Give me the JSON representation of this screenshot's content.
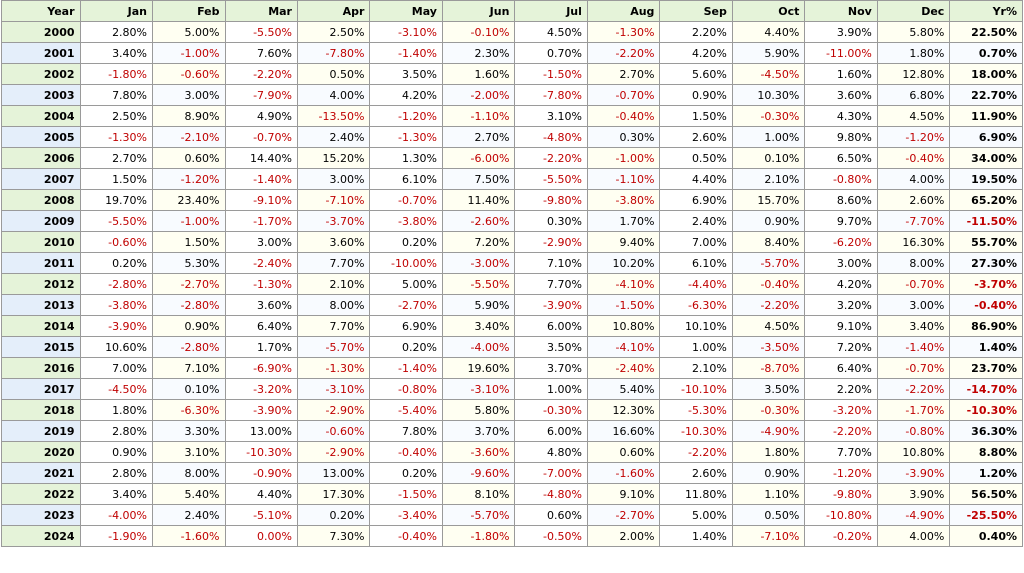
{
  "table": {
    "header": [
      "Year",
      "Jan",
      "Feb",
      "Mar",
      "Apr",
      "May",
      "Jun",
      "Jul",
      "Aug",
      "Sep",
      "Oct",
      "Nov",
      "Dec",
      "Yr%"
    ],
    "rows": [
      [
        "2000",
        "2.80%",
        "5.00%",
        "-5.50%",
        "2.50%",
        "-3.10%",
        "-0.10%",
        "4.50%",
        "-1.30%",
        "2.20%",
        "4.40%",
        "3.90%",
        "5.80%",
        "22.50%"
      ],
      [
        "2001",
        "3.40%",
        "-1.00%",
        "7.60%",
        "-7.80%",
        "-1.40%",
        "2.30%",
        "0.70%",
        "-2.20%",
        "4.20%",
        "5.90%",
        "-11.00%",
        "1.80%",
        "0.70%"
      ],
      [
        "2002",
        "-1.80%",
        "-0.60%",
        "-2.20%",
        "0.50%",
        "3.50%",
        "1.60%",
        "-1.50%",
        "2.70%",
        "5.60%",
        "-4.50%",
        "1.60%",
        "12.80%",
        "18.00%"
      ],
      [
        "2003",
        "7.80%",
        "3.00%",
        "-7.90%",
        "4.00%",
        "4.20%",
        "-2.00%",
        "-7.80%",
        "-0.70%",
        "0.90%",
        "10.30%",
        "3.60%",
        "6.80%",
        "22.70%"
      ],
      [
        "2004",
        "2.50%",
        "8.90%",
        "4.90%",
        "-13.50%",
        "-1.20%",
        "-1.10%",
        "3.10%",
        "-0.40%",
        "1.50%",
        "-0.30%",
        "4.30%",
        "4.50%",
        "11.90%"
      ],
      [
        "2005",
        "-1.30%",
        "-2.10%",
        "-0.70%",
        "2.40%",
        "-1.30%",
        "2.70%",
        "-4.80%",
        "0.30%",
        "2.60%",
        "1.00%",
        "9.80%",
        "-1.20%",
        "6.90%"
      ],
      [
        "2006",
        "2.70%",
        "0.60%",
        "14.40%",
        "15.20%",
        "1.30%",
        "-6.00%",
        "-2.20%",
        "-1.00%",
        "0.50%",
        "0.10%",
        "6.50%",
        "-0.40%",
        "34.00%"
      ],
      [
        "2007",
        "1.50%",
        "-1.20%",
        "-1.40%",
        "3.00%",
        "6.10%",
        "7.50%",
        "-5.50%",
        "-1.10%",
        "4.40%",
        "2.10%",
        "-0.80%",
        "4.00%",
        "19.50%"
      ],
      [
        "2008",
        "19.70%",
        "23.40%",
        "-9.10%",
        "-7.10%",
        "-0.70%",
        "11.40%",
        "-9.80%",
        "-3.80%",
        "6.90%",
        "15.70%",
        "8.60%",
        "2.60%",
        "65.20%"
      ],
      [
        "2009",
        "-5.50%",
        "-1.00%",
        "-1.70%",
        "-3.70%",
        "-3.80%",
        "-2.60%",
        "0.30%",
        "1.70%",
        "2.40%",
        "0.90%",
        "9.70%",
        "-7.70%",
        "-11.50%"
      ],
      [
        "2010",
        "-0.60%",
        "1.50%",
        "3.00%",
        "3.60%",
        "0.20%",
        "7.20%",
        "-2.90%",
        "9.40%",
        "7.00%",
        "8.40%",
        "-6.20%",
        "16.30%",
        "55.70%"
      ],
      [
        "2011",
        "0.20%",
        "5.30%",
        "-2.40%",
        "7.70%",
        "-10.00%",
        "-3.00%",
        "7.10%",
        "10.20%",
        "6.10%",
        "-5.70%",
        "3.00%",
        "8.00%",
        "27.30%"
      ],
      [
        "2012",
        "-2.80%",
        "-2.70%",
        "-1.30%",
        "2.10%",
        "5.00%",
        "-5.50%",
        "7.70%",
        "-4.10%",
        "-4.40%",
        "-0.40%",
        "4.20%",
        "-0.70%",
        "-3.70%"
      ],
      [
        "2013",
        "-3.80%",
        "-2.80%",
        "3.60%",
        "8.00%",
        "-2.70%",
        "5.90%",
        "-3.90%",
        "-1.50%",
        "-6.30%",
        "-2.20%",
        "3.20%",
        "3.00%",
        "-0.40%"
      ],
      [
        "2014",
        "-3.90%",
        "0.90%",
        "6.40%",
        "7.70%",
        "6.90%",
        "3.40%",
        "6.00%",
        "10.80%",
        "10.10%",
        "4.50%",
        "9.10%",
        "3.40%",
        "86.90%"
      ],
      [
        "2015",
        "10.60%",
        "-2.80%",
        "1.70%",
        "-5.70%",
        "0.20%",
        "-4.00%",
        "3.50%",
        "-4.10%",
        "1.00%",
        "-3.50%",
        "7.20%",
        "-1.40%",
        "1.40%"
      ],
      [
        "2016",
        "7.00%",
        "7.10%",
        "-6.90%",
        "-1.30%",
        "-1.40%",
        "19.60%",
        "3.70%",
        "-2.40%",
        "2.10%",
        "-8.70%",
        "6.40%",
        "-0.70%",
        "23.70%"
      ],
      [
        "2017",
        "-4.50%",
        "0.10%",
        "-3.20%",
        "-3.10%",
        "-0.80%",
        "-3.10%",
        "1.00%",
        "5.40%",
        "-10.10%",
        "3.50%",
        "2.20%",
        "-2.20%",
        "-14.70%"
      ],
      [
        "2018",
        "1.80%",
        "-6.30%",
        "-3.90%",
        "-2.90%",
        "-5.40%",
        "5.80%",
        "-0.30%",
        "12.30%",
        "-5.30%",
        "-0.30%",
        "-3.20%",
        "-1.70%",
        "-10.30%"
      ],
      [
        "2019",
        "2.80%",
        "3.30%",
        "13.00%",
        "-0.60%",
        "7.80%",
        "3.70%",
        "6.00%",
        "16.60%",
        "-10.30%",
        "-4.90%",
        "-2.20%",
        "-0.80%",
        "36.30%"
      ],
      [
        "2020",
        "0.90%",
        "3.10%",
        "-10.30%",
        "-2.90%",
        "-0.40%",
        "-3.60%",
        "4.80%",
        "0.60%",
        "-2.20%",
        "1.80%",
        "7.70%",
        "10.80%",
        "8.80%"
      ],
      [
        "2021",
        "2.80%",
        "8.00%",
        "-0.90%",
        "13.00%",
        "0.20%",
        "-9.60%",
        "-7.00%",
        "-1.60%",
        "2.60%",
        "0.90%",
        "-1.20%",
        "-3.90%",
        "1.20%"
      ],
      [
        "2022",
        "3.40%",
        "5.40%",
        "4.40%",
        "17.30%",
        "-1.50%",
        "8.10%",
        "-4.80%",
        "9.10%",
        "11.80%",
        "1.10%",
        "-9.80%",
        "3.90%",
        "56.50%"
      ],
      [
        "2023",
        "-4.00%",
        "2.40%",
        "-5.10%",
        "0.20%",
        "-3.40%",
        "-5.70%",
        "0.60%",
        "-2.70%",
        "5.00%",
        "0.50%",
        "-10.80%",
        "-4.90%",
        "-25.50%"
      ],
      [
        "2024",
        "-1.90%",
        "-1.60%",
        "0.00%",
        "7.30%",
        "-0.40%",
        "-1.80%",
        "-0.50%",
        "2.00%",
        "1.40%",
        "-7.10%",
        "-0.20%",
        "4.00%",
        "0.40%"
      ]
    ]
  }
}
